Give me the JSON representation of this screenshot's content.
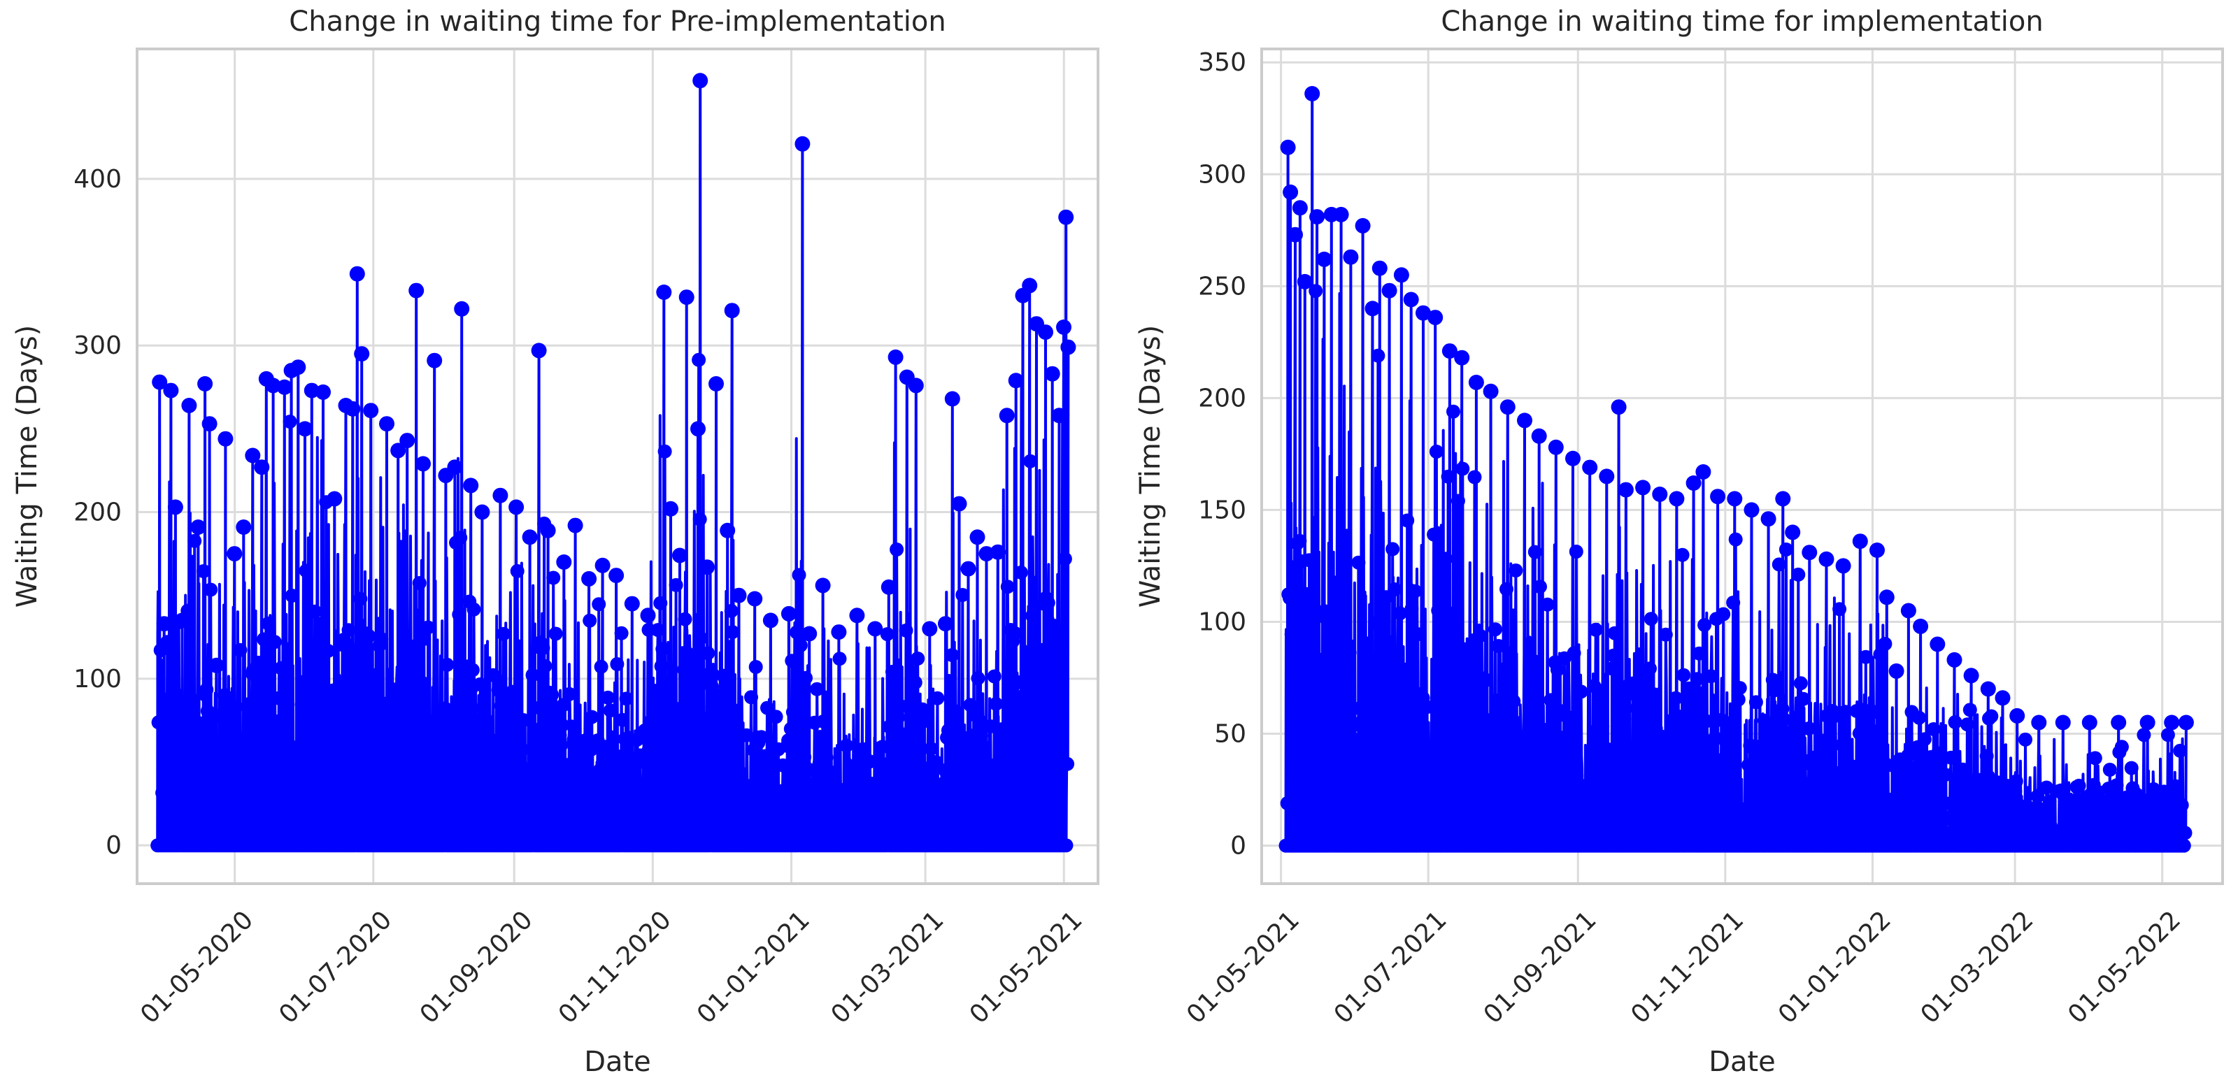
{
  "figure": {
    "background": "#ffffff",
    "grid": true
  },
  "chart_data": [
    {
      "type": "line",
      "marker": "circle",
      "color": "#0000ff",
      "title": "Change in waiting time for Pre-implementation",
      "xlabel": "Date",
      "ylabel": "Waiting Time (Days)",
      "x_axis_type": "date",
      "x_tick_labels": [
        "01-05-2020",
        "01-07-2020",
        "01-09-2020",
        "01-11-2020",
        "01-01-2021",
        "01-03-2021",
        "01-05-2021"
      ],
      "y_tick_labels": [
        "0",
        "100",
        "200",
        "300",
        "400"
      ],
      "xlim": [
        "2020-03-19",
        "2021-05-16"
      ],
      "ylim": [
        -23,
        478
      ],
      "peaks": [
        {
          "x": "2020-03-28",
          "y": 278
        },
        {
          "x": "2020-03-30",
          "y": 133
        },
        {
          "x": "2020-04-02",
          "y": 273
        },
        {
          "x": "2020-04-04",
          "y": 203
        },
        {
          "x": "2020-04-07",
          "y": 135
        },
        {
          "x": "2020-04-10",
          "y": 264
        },
        {
          "x": "2020-04-14",
          "y": 191
        },
        {
          "x": "2020-04-17",
          "y": 277
        },
        {
          "x": "2020-04-19",
          "y": 253
        },
        {
          "x": "2020-04-22",
          "y": 108
        },
        {
          "x": "2020-04-26",
          "y": 244
        },
        {
          "x": "2020-04-30",
          "y": 175
        },
        {
          "x": "2020-05-04",
          "y": 191
        },
        {
          "x": "2020-05-08",
          "y": 234
        },
        {
          "x": "2020-05-12",
          "y": 227
        },
        {
          "x": "2020-05-14",
          "y": 280
        },
        {
          "x": "2020-05-17",
          "y": 276
        },
        {
          "x": "2020-05-22",
          "y": 275
        },
        {
          "x": "2020-05-25",
          "y": 285
        },
        {
          "x": "2020-05-28",
          "y": 287
        },
        {
          "x": "2020-05-31",
          "y": 250
        },
        {
          "x": "2020-06-03",
          "y": 273
        },
        {
          "x": "2020-06-08",
          "y": 272
        },
        {
          "x": "2020-06-13",
          "y": 208
        },
        {
          "x": "2020-06-18",
          "y": 264
        },
        {
          "x": "2020-06-21",
          "y": 262
        },
        {
          "x": "2020-06-23",
          "y": 343
        },
        {
          "x": "2020-06-25",
          "y": 295
        },
        {
          "x": "2020-06-29",
          "y": 261
        },
        {
          "x": "2020-07-06",
          "y": 253
        },
        {
          "x": "2020-07-11",
          "y": 237
        },
        {
          "x": "2020-07-15",
          "y": 243
        },
        {
          "x": "2020-07-19",
          "y": 333
        },
        {
          "x": "2020-07-22",
          "y": 229
        },
        {
          "x": "2020-07-27",
          "y": 291
        },
        {
          "x": "2020-08-01",
          "y": 222
        },
        {
          "x": "2020-08-05",
          "y": 227
        },
        {
          "x": "2020-08-08",
          "y": 322
        },
        {
          "x": "2020-08-12",
          "y": 216
        },
        {
          "x": "2020-08-17",
          "y": 200
        },
        {
          "x": "2020-08-25",
          "y": 210
        },
        {
          "x": "2020-09-01",
          "y": 203
        },
        {
          "x": "2020-09-07",
          "y": 185
        },
        {
          "x": "2020-09-11",
          "y": 297
        },
        {
          "x": "2020-09-15",
          "y": 189
        },
        {
          "x": "2020-09-22",
          "y": 170
        },
        {
          "x": "2020-09-27",
          "y": 192
        },
        {
          "x": "2020-10-03",
          "y": 160
        },
        {
          "x": "2020-10-09",
          "y": 168
        },
        {
          "x": "2020-10-15",
          "y": 162
        },
        {
          "x": "2020-10-22",
          "y": 145
        },
        {
          "x": "2020-10-29",
          "y": 138
        },
        {
          "x": "2020-11-05",
          "y": 332
        },
        {
          "x": "2020-11-08",
          "y": 202
        },
        {
          "x": "2020-11-12",
          "y": 174
        },
        {
          "x": "2020-11-15",
          "y": 329
        },
        {
          "x": "2020-11-20",
          "y": 250
        },
        {
          "x": "2020-11-21",
          "y": 459
        },
        {
          "x": "2020-11-24",
          "y": 167
        },
        {
          "x": "2020-11-28",
          "y": 277
        },
        {
          "x": "2020-12-03",
          "y": 189
        },
        {
          "x": "2020-12-05",
          "y": 321
        },
        {
          "x": "2020-12-08",
          "y": 150
        },
        {
          "x": "2020-12-15",
          "y": 148
        },
        {
          "x": "2020-12-22",
          "y": 135
        },
        {
          "x": "2020-12-30",
          "y": 139
        },
        {
          "x": "2021-01-05",
          "y": 421
        },
        {
          "x": "2021-01-08",
          "y": 127
        },
        {
          "x": "2021-01-14",
          "y": 156
        },
        {
          "x": "2021-01-21",
          "y": 128
        },
        {
          "x": "2021-01-29",
          "y": 138
        },
        {
          "x": "2021-02-06",
          "y": 130
        },
        {
          "x": "2021-02-12",
          "y": 155
        },
        {
          "x": "2021-02-15",
          "y": 293
        },
        {
          "x": "2021-02-20",
          "y": 281
        },
        {
          "x": "2021-02-24",
          "y": 276
        },
        {
          "x": "2021-03-02",
          "y": 130
        },
        {
          "x": "2021-03-09",
          "y": 133
        },
        {
          "x": "2021-03-12",
          "y": 268
        },
        {
          "x": "2021-03-15",
          "y": 205
        },
        {
          "x": "2021-03-19",
          "y": 166
        },
        {
          "x": "2021-03-23",
          "y": 185
        },
        {
          "x": "2021-03-27",
          "y": 175
        },
        {
          "x": "2021-04-01",
          "y": 176
        },
        {
          "x": "2021-04-05",
          "y": 258
        },
        {
          "x": "2021-04-09",
          "y": 279
        },
        {
          "x": "2021-04-12",
          "y": 330
        },
        {
          "x": "2021-04-15",
          "y": 336
        },
        {
          "x": "2021-04-18",
          "y": 313
        },
        {
          "x": "2021-04-22",
          "y": 308
        },
        {
          "x": "2021-04-25",
          "y": 283
        },
        {
          "x": "2021-04-28",
          "y": 258
        },
        {
          "x": "2021-04-30",
          "y": 311
        },
        {
          "x": "2021-05-01",
          "y": 377
        },
        {
          "x": "2021-05-02",
          "y": 299
        }
      ]
    },
    {
      "type": "line",
      "marker": "circle",
      "color": "#0000ff",
      "title": "Change in waiting time for implementation",
      "xlabel": "Date",
      "ylabel": "Waiting Time (Days)",
      "x_axis_type": "date",
      "x_tick_labels": [
        "01-05-2021",
        "01-07-2021",
        "01-09-2021",
        "01-11-2021",
        "01-01-2022",
        "01-03-2022",
        "01-05-2022"
      ],
      "y_tick_labels": [
        "0",
        "50",
        "100",
        "150",
        "200",
        "250",
        "300",
        "350"
      ],
      "xlim": [
        "2021-04-23",
        "2022-05-26"
      ],
      "ylim": [
        -17,
        356
      ],
      "peaks": [
        {
          "x": "2021-05-03",
          "y": 312
        },
        {
          "x": "2021-05-04",
          "y": 292
        },
        {
          "x": "2021-05-06",
          "y": 273
        },
        {
          "x": "2021-05-08",
          "y": 285
        },
        {
          "x": "2021-05-10",
          "y": 252
        },
        {
          "x": "2021-05-13",
          "y": 336
        },
        {
          "x": "2021-05-15",
          "y": 281
        },
        {
          "x": "2021-05-18",
          "y": 262
        },
        {
          "x": "2021-05-21",
          "y": 282
        },
        {
          "x": "2021-05-25",
          "y": 282
        },
        {
          "x": "2021-05-29",
          "y": 263
        },
        {
          "x": "2021-06-03",
          "y": 277
        },
        {
          "x": "2021-06-07",
          "y": 240
        },
        {
          "x": "2021-06-10",
          "y": 258
        },
        {
          "x": "2021-06-14",
          "y": 248
        },
        {
          "x": "2021-06-19",
          "y": 255
        },
        {
          "x": "2021-06-23",
          "y": 244
        },
        {
          "x": "2021-06-28",
          "y": 238
        },
        {
          "x": "2021-07-03",
          "y": 236
        },
        {
          "x": "2021-07-09",
          "y": 221
        },
        {
          "x": "2021-07-14",
          "y": 218
        },
        {
          "x": "2021-07-20",
          "y": 207
        },
        {
          "x": "2021-07-26",
          "y": 203
        },
        {
          "x": "2021-08-02",
          "y": 196
        },
        {
          "x": "2021-08-09",
          "y": 190
        },
        {
          "x": "2021-08-15",
          "y": 183
        },
        {
          "x": "2021-08-22",
          "y": 178
        },
        {
          "x": "2021-08-29",
          "y": 173
        },
        {
          "x": "2021-09-05",
          "y": 169
        },
        {
          "x": "2021-09-12",
          "y": 165
        },
        {
          "x": "2021-09-17",
          "y": 196
        },
        {
          "x": "2021-09-20",
          "y": 159
        },
        {
          "x": "2021-09-27",
          "y": 160
        },
        {
          "x": "2021-10-04",
          "y": 157
        },
        {
          "x": "2021-10-11",
          "y": 155
        },
        {
          "x": "2021-10-18",
          "y": 162
        },
        {
          "x": "2021-10-22",
          "y": 167
        },
        {
          "x": "2021-10-28",
          "y": 156
        },
        {
          "x": "2021-11-04",
          "y": 155
        },
        {
          "x": "2021-11-11",
          "y": 150
        },
        {
          "x": "2021-11-18",
          "y": 146
        },
        {
          "x": "2021-11-24",
          "y": 155
        },
        {
          "x": "2021-11-28",
          "y": 140
        },
        {
          "x": "2021-12-05",
          "y": 131
        },
        {
          "x": "2021-12-12",
          "y": 128
        },
        {
          "x": "2021-12-19",
          "y": 125
        },
        {
          "x": "2021-12-26",
          "y": 136
        },
        {
          "x": "2022-01-02",
          "y": 132
        },
        {
          "x": "2022-01-06",
          "y": 111
        },
        {
          "x": "2022-01-10",
          "y": 78
        },
        {
          "x": "2022-01-15",
          "y": 105
        },
        {
          "x": "2022-01-20",
          "y": 98
        },
        {
          "x": "2022-01-27",
          "y": 90
        },
        {
          "x": "2022-02-03",
          "y": 83
        },
        {
          "x": "2022-02-10",
          "y": 76
        },
        {
          "x": "2022-02-17",
          "y": 70
        },
        {
          "x": "2022-02-23",
          "y": 66
        },
        {
          "x": "2022-03-01",
          "y": 58
        },
        {
          "x": "2022-03-10",
          "y": 55
        },
        {
          "x": "2022-03-20",
          "y": 55
        },
        {
          "x": "2022-03-31",
          "y": 55
        },
        {
          "x": "2022-04-12",
          "y": 55
        },
        {
          "x": "2022-04-24",
          "y": 55
        },
        {
          "x": "2022-05-04",
          "y": 55
        },
        {
          "x": "2022-05-10",
          "y": 55
        }
      ]
    }
  ]
}
